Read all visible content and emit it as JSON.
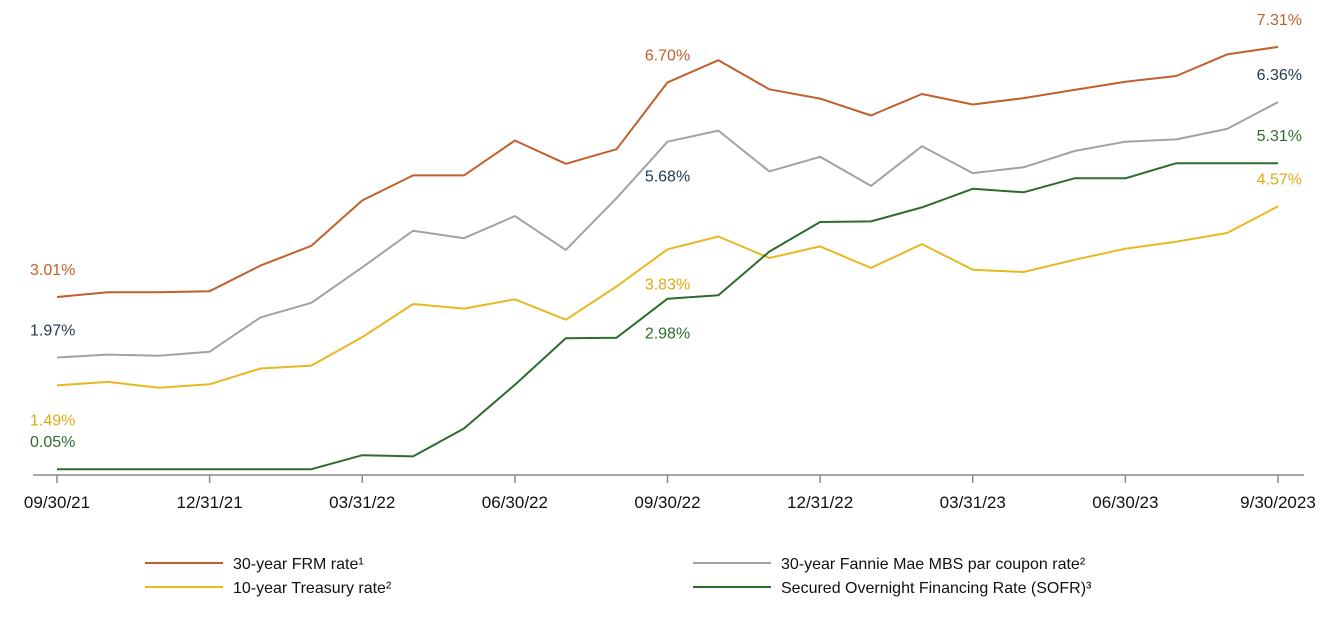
{
  "chart_data": {
    "type": "line",
    "title": "",
    "xlabel": "",
    "ylabel": "",
    "x": [
      "09/30/21",
      "10/31/21",
      "11/30/21",
      "12/31/21",
      "01/31/22",
      "02/28/22",
      "03/31/22",
      "04/30/22",
      "05/31/22",
      "06/30/22",
      "07/31/22",
      "08/31/22",
      "09/30/22",
      "10/31/22",
      "11/30/22",
      "12/31/22",
      "01/31/23",
      "02/28/23",
      "03/31/23",
      "04/30/23",
      "05/31/23",
      "06/30/23",
      "07/31/23",
      "08/31/23",
      "09/30/23"
    ],
    "tick_labels": [
      "09/30/21",
      "12/31/21",
      "03/31/22",
      "06/30/22",
      "09/30/22",
      "12/31/22",
      "03/31/23",
      "06/30/23",
      "9/30/2023"
    ],
    "tick_positions": [
      0,
      3,
      6,
      9,
      12,
      15,
      18,
      21,
      24
    ],
    "ylim": [
      -0.05,
      7.6
    ],
    "grid": false,
    "legend_position": "bottom",
    "series": [
      {
        "name": "30-year FRM rate¹",
        "color": "#c0602b",
        "values": [
          3.01,
          3.09,
          3.09,
          3.11,
          3.55,
          3.89,
          4.67,
          5.1,
          5.1,
          5.7,
          5.3,
          5.55,
          6.7,
          7.08,
          6.58,
          6.42,
          6.13,
          6.5,
          6.32,
          6.43,
          6.57,
          6.71,
          6.81,
          7.18,
          7.31
        ]
      },
      {
        "name": "30-year Fannie Mae MBS par coupon rate²",
        "color": "#a0a2a8",
        "values": [
          1.97,
          2.02,
          2.0,
          2.07,
          2.66,
          2.91,
          3.52,
          4.15,
          4.02,
          4.4,
          3.82,
          4.71,
          5.68,
          5.87,
          5.17,
          5.42,
          4.92,
          5.6,
          5.14,
          5.24,
          5.52,
          5.68,
          5.72,
          5.9,
          6.36
        ]
      },
      {
        "name": "10-year Treasury rate²",
        "color": "#e8b820",
        "values": [
          1.49,
          1.55,
          1.45,
          1.51,
          1.78,
          1.83,
          2.32,
          2.89,
          2.81,
          2.97,
          2.62,
          3.19,
          3.83,
          4.05,
          3.68,
          3.88,
          3.51,
          3.92,
          3.48,
          3.44,
          3.65,
          3.84,
          3.96,
          4.11,
          4.57
        ]
      },
      {
        "name": "Secured Overnight Financing Rate (SOFR)³",
        "color": "#2e6b2e",
        "values": [
          0.05,
          0.05,
          0.05,
          0.05,
          0.05,
          0.05,
          0.29,
          0.27,
          0.75,
          1.5,
          2.3,
          2.31,
          2.98,
          3.04,
          3.79,
          4.3,
          4.31,
          4.55,
          4.87,
          4.81,
          5.05,
          5.05,
          5.31,
          5.31,
          5.31
        ]
      }
    ],
    "annotations": [
      {
        "text": "3.01%",
        "series": 0,
        "index": 0
      },
      {
        "text": "1.97%",
        "series": 1,
        "index": 0
      },
      {
        "text": "1.49%",
        "series": 2,
        "index": 0
      },
      {
        "text": "0.05%",
        "series": 3,
        "index": 0
      },
      {
        "text": "6.70%",
        "series": 0,
        "index": 12
      },
      {
        "text": "5.68%",
        "series": 1,
        "index": 12
      },
      {
        "text": "3.83%",
        "series": 2,
        "index": 12
      },
      {
        "text": "2.98%",
        "series": 3,
        "index": 12
      },
      {
        "text": "7.31%",
        "series": 0,
        "index": 24
      },
      {
        "text": "6.36%",
        "series": 1,
        "index": 24
      },
      {
        "text": "5.31%",
        "series": 3,
        "index": 24
      },
      {
        "text": "4.57%",
        "series": 2,
        "index": 24
      }
    ],
    "label_colors": [
      "#c0602b",
      "#1f3a4d",
      "#e0aa10",
      "#2e6b2e"
    ]
  }
}
